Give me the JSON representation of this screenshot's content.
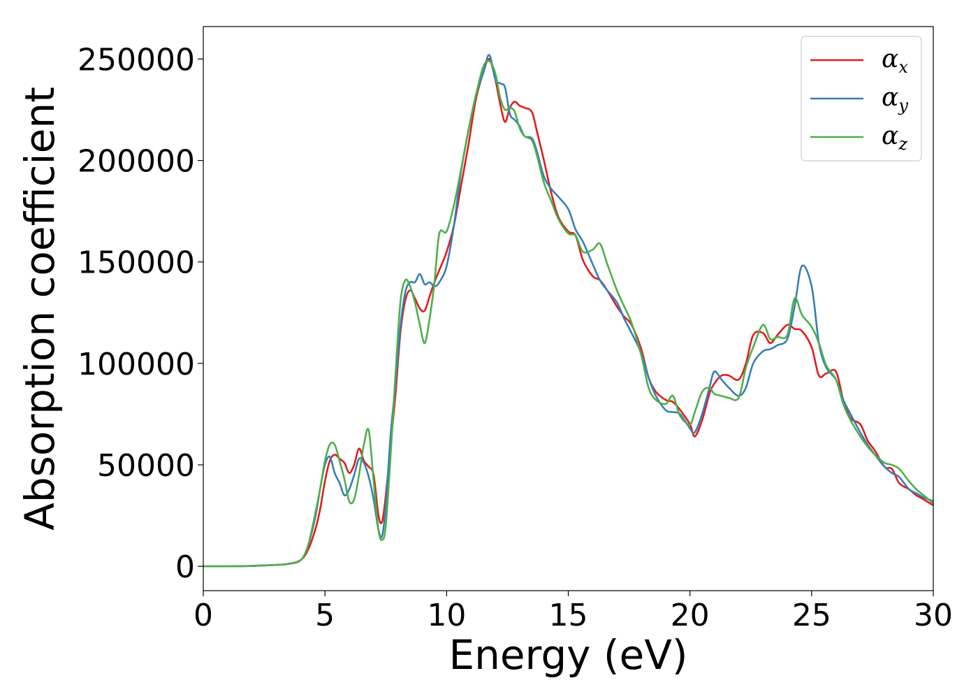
{
  "chart_data": {
    "type": "line",
    "xlabel": "Energy (eV)",
    "ylabel": "Absorption coefficient",
    "xlim": [
      0,
      30
    ],
    "ylim": [
      -12000,
      266000
    ],
    "xticks": [
      "0",
      "5",
      "10",
      "15",
      "20",
      "25",
      "30"
    ],
    "yticks": [
      "0",
      "50000",
      "100000",
      "150000",
      "200000",
      "250000"
    ],
    "grid": false,
    "legend_position": "top-right",
    "series": [
      {
        "name": "αx",
        "symbol": "α",
        "subscript": "x",
        "color": "#e41a1c",
        "x": [
          0,
          1,
          2,
          3,
          3.5,
          4,
          4.3,
          4.6,
          4.8,
          5.0,
          5.2,
          5.4,
          5.6,
          5.8,
          6.0,
          6.2,
          6.4,
          6.6,
          6.8,
          7.0,
          7.2,
          7.35,
          7.5,
          7.7,
          7.9,
          8.1,
          8.3,
          8.5,
          8.7,
          8.9,
          9.1,
          9.3,
          9.5,
          9.7,
          10.0,
          10.3,
          10.6,
          10.9,
          11.2,
          11.5,
          11.75,
          12.0,
          12.2,
          12.4,
          12.6,
          12.8,
          13.0,
          13.2,
          13.5,
          13.7,
          14.0,
          14.3,
          14.6,
          15.0,
          15.3,
          15.6,
          16.0,
          16.3,
          16.6,
          17.0,
          17.3,
          17.6,
          18.0,
          18.3,
          18.6,
          19.0,
          19.3,
          19.6,
          20.0,
          20.2,
          20.5,
          20.8,
          21.0,
          21.3,
          21.6,
          22.0,
          22.3,
          22.6,
          23.0,
          23.3,
          23.6,
          24.0,
          24.3,
          24.6,
          25.0,
          25.3,
          25.6,
          26.0,
          26.3,
          26.6,
          27.0,
          27.3,
          27.6,
          28.0,
          28.3,
          28.6,
          29.0,
          29.3,
          29.6,
          30.0
        ],
        "y": [
          0,
          0,
          200,
          700,
          1200,
          3000,
          8000,
          18000,
          28000,
          42000,
          52000,
          55000,
          53000,
          51000,
          46000,
          50000,
          58000,
          52000,
          49000,
          45000,
          25000,
          22000,
          35000,
          60000,
          85000,
          115000,
          131000,
          136000,
          132000,
          127000,
          126000,
          133000,
          140000,
          146000,
          155000,
          168000,
          188000,
          208000,
          230000,
          243000,
          250000,
          240000,
          228000,
          219000,
          226000,
          229000,
          227000,
          226000,
          224000,
          215000,
          200000,
          184000,
          172000,
          165000,
          163000,
          151000,
          143000,
          141000,
          136000,
          128000,
          123000,
          119000,
          107000,
          93000,
          86000,
          82000,
          81000,
          77000,
          70000,
          64000,
          72000,
          85000,
          90000,
          94000,
          94000,
          92000,
          100000,
          114000,
          115000,
          110000,
          114000,
          119000,
          117000,
          116000,
          108000,
          94000,
          95000,
          96000,
          82000,
          73000,
          70000,
          62000,
          57000,
          49000,
          48000,
          41000,
          38000,
          35000,
          33000,
          30000
        ],
        "values_note": ""
      },
      {
        "name": "αy",
        "symbol": "α",
        "subscript": "y",
        "color": "#377eb8",
        "x": [
          0,
          1,
          2,
          3,
          3.5,
          4,
          4.3,
          4.6,
          4.8,
          5.0,
          5.2,
          5.4,
          5.6,
          5.8,
          6.0,
          6.2,
          6.4,
          6.6,
          6.8,
          7.0,
          7.2,
          7.35,
          7.5,
          7.7,
          7.9,
          8.1,
          8.3,
          8.5,
          8.7,
          8.9,
          9.1,
          9.3,
          9.5,
          9.7,
          10.0,
          10.3,
          10.6,
          10.9,
          11.2,
          11.5,
          11.75,
          12.0,
          12.2,
          12.4,
          12.6,
          12.8,
          13.0,
          13.2,
          13.5,
          13.7,
          14.0,
          14.3,
          14.6,
          15.0,
          15.3,
          15.6,
          16.0,
          16.3,
          16.6,
          17.0,
          17.3,
          17.6,
          18.0,
          18.3,
          18.6,
          19.0,
          19.3,
          19.6,
          20.0,
          20.2,
          20.5,
          20.8,
          21.0,
          21.3,
          21.6,
          22.0,
          22.3,
          22.6,
          23.0,
          23.3,
          23.6,
          24.0,
          24.3,
          24.6,
          25.0,
          25.3,
          25.6,
          26.0,
          26.3,
          26.6,
          27.0,
          27.3,
          27.6,
          28.0,
          28.3,
          28.6,
          29.0,
          29.3,
          29.6,
          30.0
        ],
        "y": [
          0,
          0,
          200,
          700,
          1200,
          3000,
          10000,
          24000,
          38000,
          50000,
          54000,
          46000,
          41000,
          35000,
          38000,
          45000,
          53000,
          51000,
          44000,
          33000,
          18000,
          15000,
          30000,
          65000,
          90000,
          118000,
          135000,
          140000,
          140000,
          144000,
          139000,
          140000,
          138000,
          140000,
          148000,
          168000,
          195000,
          215000,
          232000,
          243000,
          252000,
          240000,
          238000,
          236000,
          223000,
          220000,
          217000,
          212000,
          211000,
          205000,
          192000,
          186000,
          182000,
          176000,
          166000,
          160000,
          149000,
          141000,
          136000,
          130000,
          122000,
          115000,
          105000,
          93000,
          84000,
          77000,
          76000,
          75000,
          68000,
          66000,
          75000,
          88000,
          96000,
          92000,
          88000,
          84000,
          88000,
          100000,
          106000,
          107000,
          109000,
          112000,
          128000,
          148000,
          138000,
          110000,
          98000,
          92000,
          82000,
          75000,
          66000,
          60000,
          55000,
          49000,
          46000,
          44000,
          38000,
          36000,
          34000,
          32000
        ],
        "values_note": ""
      },
      {
        "name": "αz",
        "symbol": "α",
        "subscript": "z",
        "color": "#4daf4a",
        "x": [
          0,
          1,
          2,
          3,
          3.5,
          4,
          4.3,
          4.6,
          4.8,
          5.0,
          5.2,
          5.4,
          5.6,
          5.8,
          6.0,
          6.2,
          6.4,
          6.6,
          6.8,
          7.0,
          7.2,
          7.35,
          7.5,
          7.7,
          7.9,
          8.1,
          8.3,
          8.5,
          8.7,
          8.9,
          9.1,
          9.3,
          9.5,
          9.7,
          10.0,
          10.3,
          10.6,
          10.9,
          11.2,
          11.5,
          11.75,
          12.0,
          12.2,
          12.4,
          12.6,
          12.8,
          13.0,
          13.2,
          13.5,
          13.7,
          14.0,
          14.3,
          14.6,
          15.0,
          15.3,
          15.6,
          16.0,
          16.3,
          16.6,
          17.0,
          17.3,
          17.6,
          18.0,
          18.3,
          18.6,
          19.0,
          19.3,
          19.6,
          20.0,
          20.2,
          20.5,
          20.8,
          21.0,
          21.3,
          21.6,
          22.0,
          22.3,
          22.6,
          23.0,
          23.3,
          23.6,
          24.0,
          24.3,
          24.6,
          25.0,
          25.3,
          25.6,
          26.0,
          26.3,
          26.6,
          27.0,
          27.3,
          27.6,
          28.0,
          28.3,
          28.6,
          29.0,
          29.3,
          29.6,
          30.0
        ],
        "y": [
          0,
          0,
          200,
          700,
          1200,
          3000,
          10000,
          26000,
          38000,
          52000,
          60000,
          60000,
          52000,
          43000,
          32000,
          33000,
          45000,
          60000,
          67000,
          42000,
          18000,
          13000,
          20000,
          55000,
          95000,
          130000,
          141000,
          138000,
          130000,
          119000,
          110000,
          122000,
          140000,
          164000,
          165000,
          178000,
          196000,
          215000,
          232000,
          246000,
          249000,
          243000,
          231000,
          225000,
          226000,
          224000,
          216000,
          212000,
          210000,
          203000,
          189000,
          180000,
          171000,
          164000,
          163000,
          155000,
          156000,
          159000,
          149000,
          136000,
          128000,
          120000,
          104000,
          88000,
          82000,
          80000,
          84000,
          74000,
          70000,
          76000,
          86000,
          88000,
          85000,
          84000,
          83000,
          83000,
          98000,
          108000,
          119000,
          112000,
          113000,
          114000,
          132000,
          124000,
          118000,
          110000,
          99000,
          92000,
          80000,
          72000,
          64000,
          59000,
          55000,
          51000,
          50000,
          48000,
          42000,
          38000,
          35000,
          31000
        ],
        "values_note": ""
      }
    ]
  }
}
